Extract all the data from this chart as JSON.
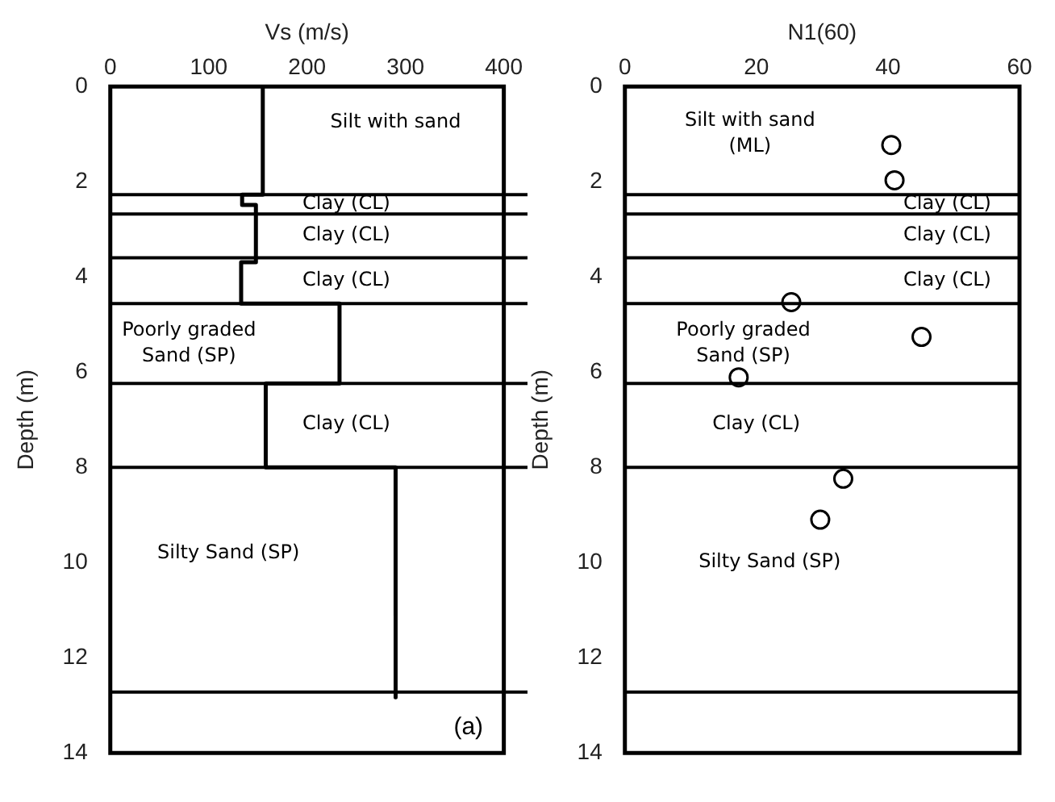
{
  "chart_data": [
    {
      "type": "line",
      "xlabel": "Vs (m/s)",
      "ylabel": "Depth (m)",
      "xlim": [
        0,
        400
      ],
      "xticks": [
        0,
        100,
        200,
        300,
        400
      ],
      "ylim": [
        14,
        0
      ],
      "yticks": [
        0,
        2,
        4,
        6,
        8,
        10,
        12,
        14
      ],
      "legend": false,
      "marker": "none",
      "line_style": "solid",
      "series": [
        {
          "color": "#000000",
          "x": [
            155,
            155,
            134,
            134,
            148,
            148,
            133,
            133,
            233,
            233,
            158,
            158,
            290,
            290
          ],
          "values": [
            0,
            2.27,
            2.27,
            2.49,
            2.49,
            3.69,
            3.69,
            4.56,
            4.56,
            6.24,
            6.24,
            8.0,
            8.0,
            12.83
          ]
        }
      ],
      "ref_lines": [
        {
          "axis": "y",
          "value": 2.27
        },
        {
          "axis": "y",
          "value": 2.68
        },
        {
          "axis": "y",
          "value": 3.6
        },
        {
          "axis": "y",
          "value": 4.56
        },
        {
          "axis": "y",
          "value": 6.24
        },
        {
          "axis": "y",
          "value": 8.0
        },
        {
          "axis": "y",
          "value": 12.72
        }
      ],
      "annotations": [
        "Silt with sand",
        "Clay (CL)",
        "Clay (CL)",
        "Clay (CL)",
        "Poorly graded Sand (SP)",
        "Clay (CL)",
        "Silty Sand (SP)",
        "(a)"
      ]
    },
    {
      "type": "scatter",
      "xlabel": "N1(60)",
      "ylabel": "Depth (m)",
      "xlim": [
        0,
        60
      ],
      "xticks": [
        0,
        20,
        40,
        60
      ],
      "ylim": [
        14,
        0
      ],
      "yticks": [
        0,
        2,
        4,
        6,
        8,
        10,
        12,
        14
      ],
      "legend": false,
      "marker": "circle",
      "series": [
        {
          "color": "#000000",
          "x": [
            40.5,
            41,
            25.3,
            45.1,
            17.3,
            33.2,
            29.7
          ],
          "values": [
            1.23,
            1.97,
            4.53,
            5.26,
            6.11,
            8.24,
            9.1
          ]
        }
      ],
      "ref_lines": [
        {
          "axis": "y",
          "value": 2.27
        },
        {
          "axis": "y",
          "value": 2.68
        },
        {
          "axis": "y",
          "value": 3.6
        },
        {
          "axis": "y",
          "value": 4.56
        },
        {
          "axis": "y",
          "value": 6.24
        },
        {
          "axis": "y",
          "value": 8.0
        },
        {
          "axis": "y",
          "value": 12.72
        }
      ],
      "annotations": [
        "Silt with sand (ML)",
        "Clay (CL)",
        "Clay (CL)",
        "Clay (CL)",
        "Poorly graded Sand (SP)",
        "Clay (CL)",
        "Silty Sand (SP)"
      ]
    }
  ]
}
